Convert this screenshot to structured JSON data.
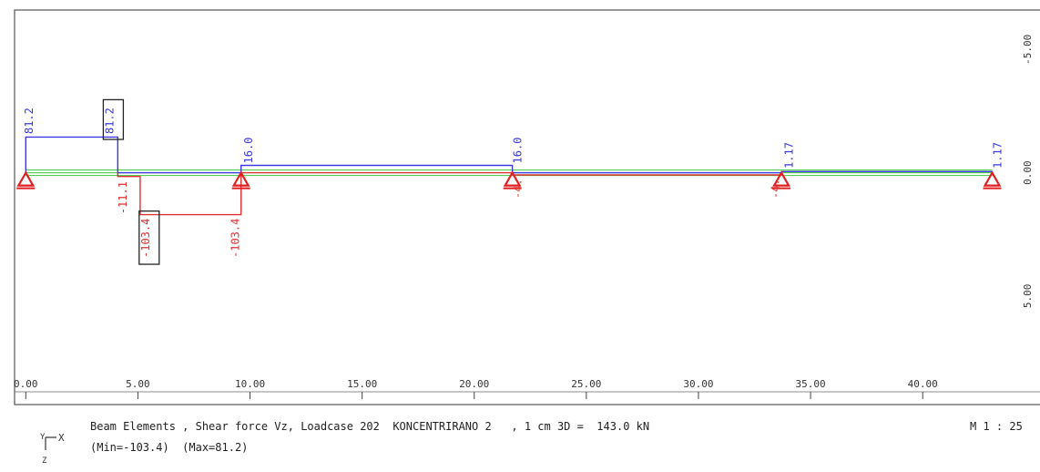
{
  "caption": {
    "line1": "Beam Elements , Shear force Vz, Loadcase 202  KONCENTRIRANO 2   , 1 cm 3D =  143.0 kN",
    "line2": "(Min=-103.4)  (Max=81.2)",
    "scale": "M 1 : 25",
    "axis_x": "X",
    "axis_y": "Y",
    "axis_z": "Z"
  },
  "chart_data": {
    "type": "line",
    "x_ticks": [
      "0.00",
      "5.00",
      "10.00",
      "15.00",
      "20.00",
      "25.00",
      "30.00",
      "35.00",
      "40.00"
    ],
    "y_ticks": [
      "-5.00",
      "0.00",
      "5.00"
    ],
    "xlim": [
      -0.5,
      45.8
    ],
    "ylim": [
      -6.6,
      9.4
    ],
    "supports_x": [
      0.0,
      9.6,
      21.7,
      33.7,
      43.1
    ],
    "series": [
      {
        "color": "#3a3ae0",
        "x": [
          0.0,
          0.0,
          4.1,
          4.1,
          9.6,
          9.6,
          21.7,
          21.7,
          33.7,
          33.7,
          43.1,
          43.1
        ],
        "y": [
          0,
          -1.45,
          -1.45,
          0,
          0,
          -0.3,
          -0.3,
          0,
          0,
          -0.05,
          -0.05,
          0
        ]
      },
      {
        "color": "#e03030",
        "x": [
          4.1,
          4.1,
          5.1,
          5.1,
          9.6,
          9.6,
          21.7,
          21.7,
          33.7,
          33.7
        ],
        "y": [
          0,
          0.15,
          0.15,
          1.7,
          1.7,
          0,
          0,
          0.09,
          0.09,
          0
        ]
      }
    ],
    "value_labels": [
      {
        "text": "81.2",
        "x": 0.1,
        "y": -1.5,
        "color": "#3a3ae0",
        "boxed": false
      },
      {
        "text": "81.2",
        "x": 3.7,
        "y": -1.5,
        "color": "#3a3ae0",
        "boxed": true
      },
      {
        "text": "16.0",
        "x": 9.9,
        "y": -0.3,
        "color": "#3a3ae0",
        "boxed": false
      },
      {
        "text": "16.0",
        "x": 21.9,
        "y": -0.3,
        "color": "#3a3ae0",
        "boxed": false
      },
      {
        "text": "1.17",
        "x": 34.0,
        "y": -0.1,
        "color": "#3a3ae0",
        "boxed": false
      },
      {
        "text": "1.17",
        "x": 43.3,
        "y": -0.1,
        "color": "#3a3ae0",
        "boxed": false
      },
      {
        "text": "-11.1",
        "x": 4.3,
        "y": 0.2,
        "color": "#e03030",
        "boxed": false
      },
      {
        "text": "-103.4",
        "x": 5.3,
        "y": 1.7,
        "color": "#e03030",
        "boxed": true
      },
      {
        "text": "-103.4",
        "x": 9.3,
        "y": 1.7,
        "color": "#e03030",
        "boxed": false
      },
      {
        "text": "-4.",
        "x": 21.9,
        "y": 0.1,
        "color": "#e03030",
        "boxed": false
      },
      {
        "text": "-4.",
        "x": 33.4,
        "y": 0.1,
        "color": "#e03030",
        "boxed": false
      }
    ]
  }
}
